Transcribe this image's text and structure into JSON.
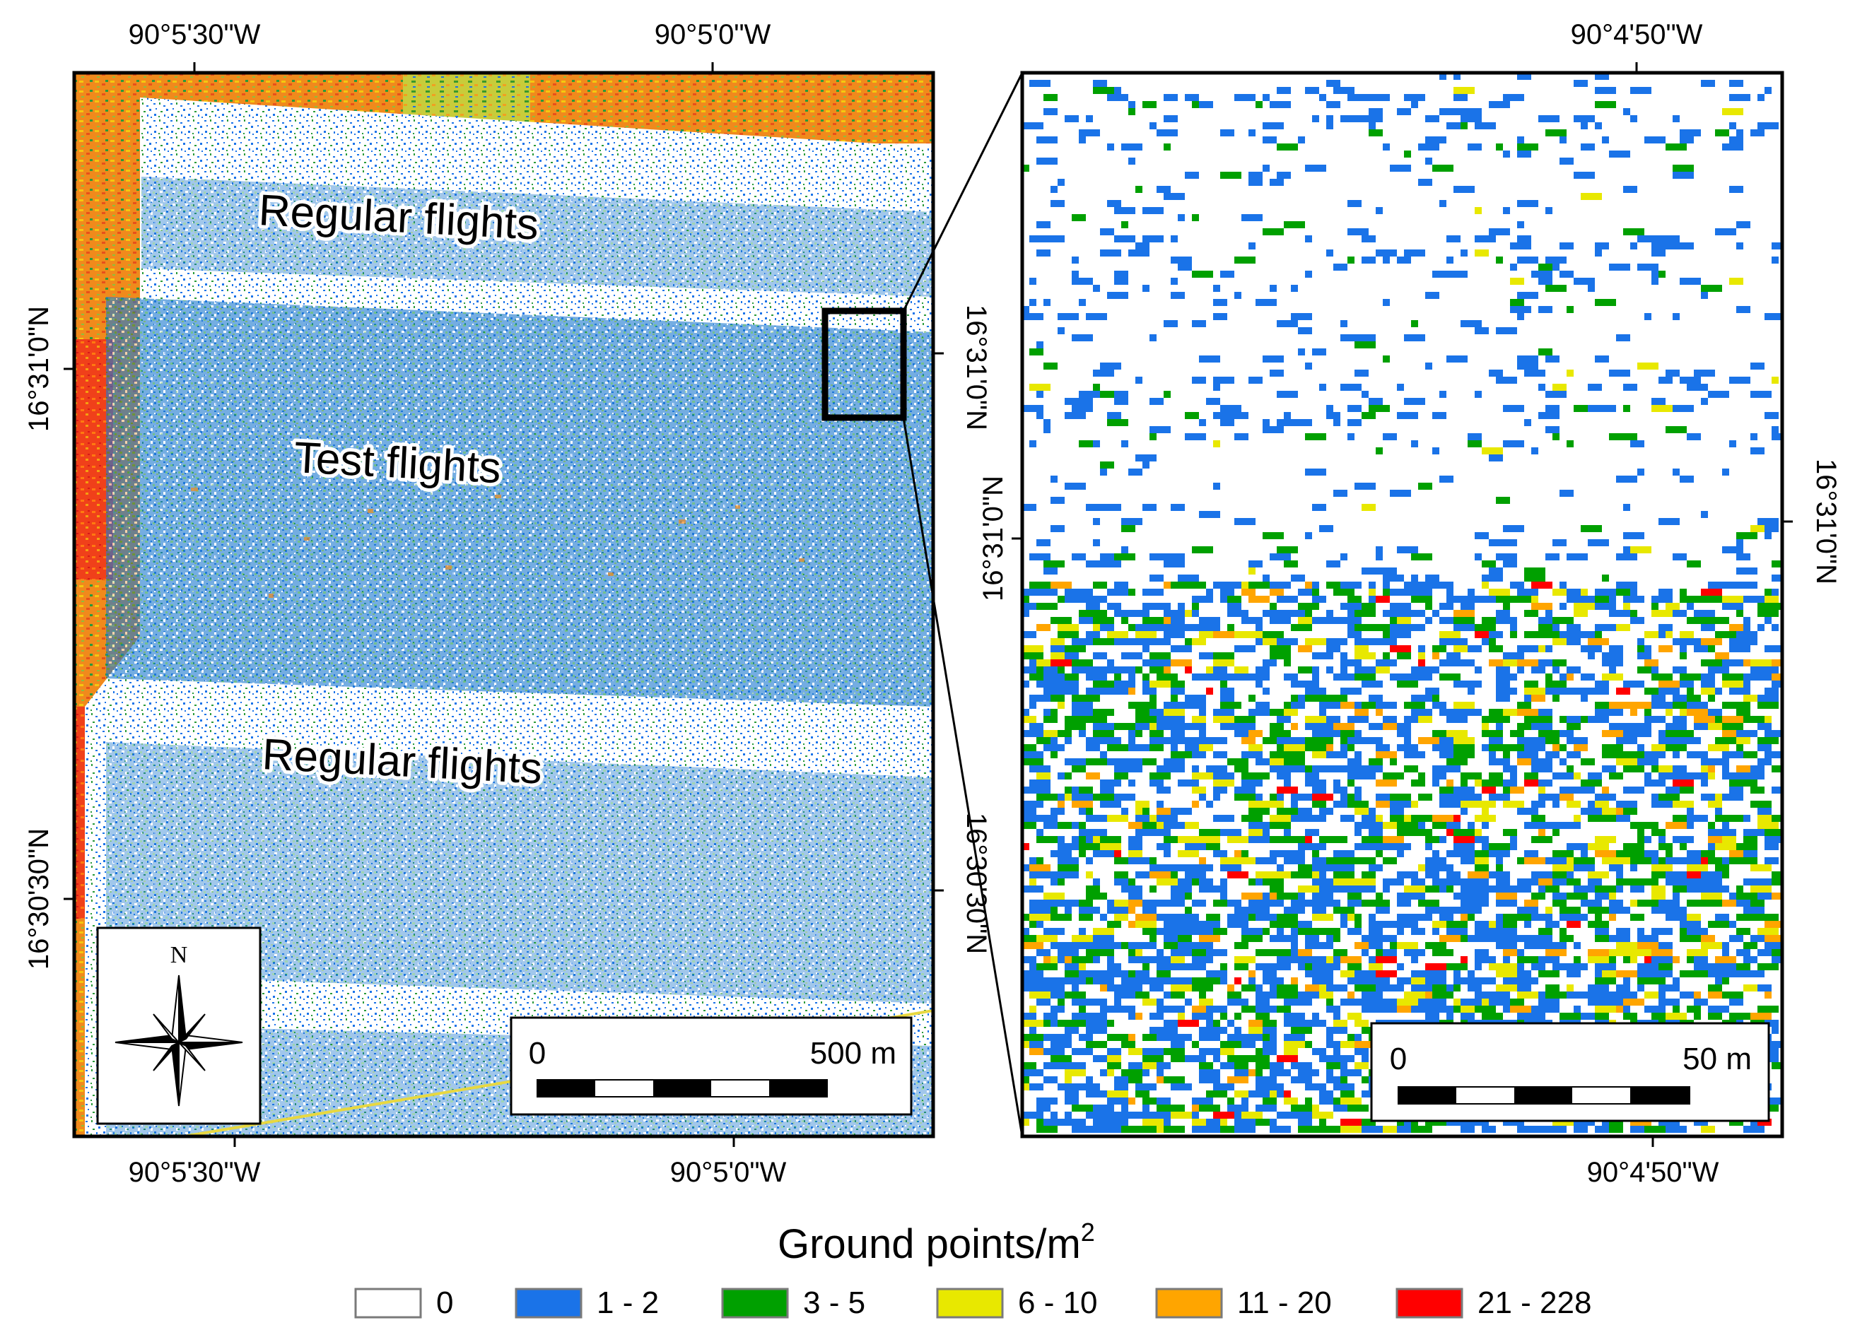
{
  "left_map": {
    "top_lon_labels": [
      "90°5'30\"W",
      "90°5'0\"W"
    ],
    "bottom_lon_labels": [
      "90°5'30\"W",
      "90°5'0\"W"
    ],
    "left_lat_labels": [
      "16°31'0\"N",
      "16°30'30\"N"
    ],
    "right_lat_labels": [
      "16°31'0\"N",
      "16°30'30\"N"
    ],
    "zone_labels": [
      "Regular flights",
      "Test flights",
      "Regular flights"
    ],
    "north_arrow_label": "N",
    "scalebar": {
      "start": "0",
      "end": "500 m"
    }
  },
  "right_map": {
    "top_lon_label": "90°4'50\"W",
    "bottom_lon_label": "90°4'50\"W",
    "left_lat_label": "16°31'0\"N",
    "right_lat_label": "16°31'0\"N",
    "scalebar": {
      "start": "0",
      "end": "50 m"
    }
  },
  "legend": {
    "title": "Ground points/m",
    "title_superscript": "2",
    "classes": [
      {
        "label": "0",
        "color": "#ffffff"
      },
      {
        "label": "1 - 2",
        "color": "#1a73e8"
      },
      {
        "label": "3 - 5",
        "color": "#00a000"
      },
      {
        "label": "6 - 10",
        "color": "#e8e800"
      },
      {
        "label": "11 - 20",
        "color": "#ffa500"
      },
      {
        "label": "21 - 228",
        "color": "#ff0000"
      }
    ]
  }
}
